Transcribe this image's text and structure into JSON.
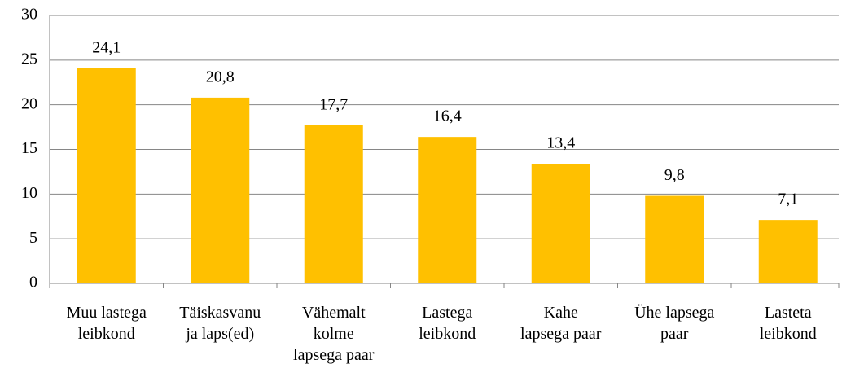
{
  "chart_data": {
    "type": "bar",
    "categories": [
      "Muu lastega\nleibkond",
      "Täiskasvanu\nja laps(ed)",
      "Vähemalt\nkolme\nlapsega paar",
      "Lastega\nleibkond",
      "Kahe\nlapsega paar",
      "Ühe lapsega\npaar",
      "Lasteta\nleibkond"
    ],
    "values": [
      24.1,
      20.8,
      17.7,
      16.4,
      13.4,
      9.8,
      7.1
    ],
    "value_labels": [
      "24,1",
      "20,8",
      "17,7",
      "16,4",
      "13,4",
      "9,8",
      "7,1"
    ],
    "color": "#ffc000",
    "ylim": [
      0,
      30
    ],
    "yticks": [
      0,
      5,
      10,
      15,
      20,
      25,
      30
    ],
    "grid": true
  }
}
